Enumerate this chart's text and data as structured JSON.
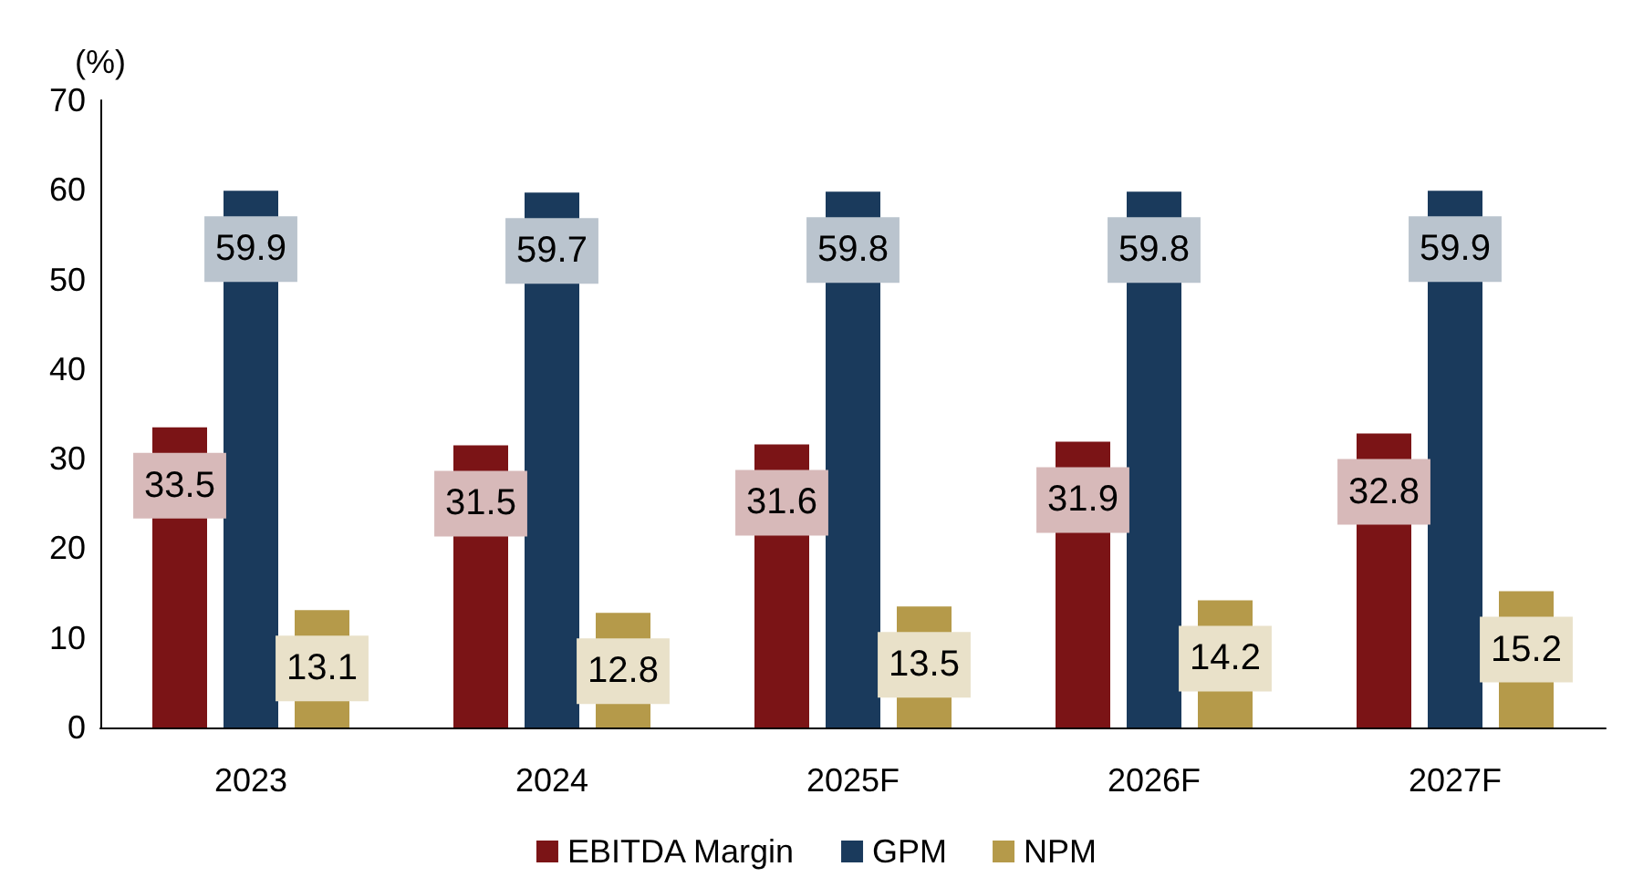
{
  "chart_data": {
    "type": "bar",
    "ylabel": "(%)",
    "categories": [
      "2023",
      "2024",
      "2025F",
      "2026F",
      "2027F"
    ],
    "series": [
      {
        "name": "EBITDA Margin",
        "color": "#7b1416",
        "values": [
          33.5,
          31.5,
          31.6,
          31.9,
          32.8
        ]
      },
      {
        "name": "GPM",
        "color": "#1a3a5c",
        "values": [
          59.9,
          59.7,
          59.8,
          59.8,
          59.9
        ]
      },
      {
        "name": "NPM",
        "color": "#b59a4a",
        "values": [
          13.1,
          12.8,
          13.5,
          14.2,
          15.2
        ]
      }
    ],
    "ylim": [
      0,
      70
    ],
    "yticks": [
      0,
      10,
      20,
      30,
      40,
      50,
      60,
      70
    ],
    "grid": false,
    "legend": "bottom",
    "data_labels": true
  }
}
